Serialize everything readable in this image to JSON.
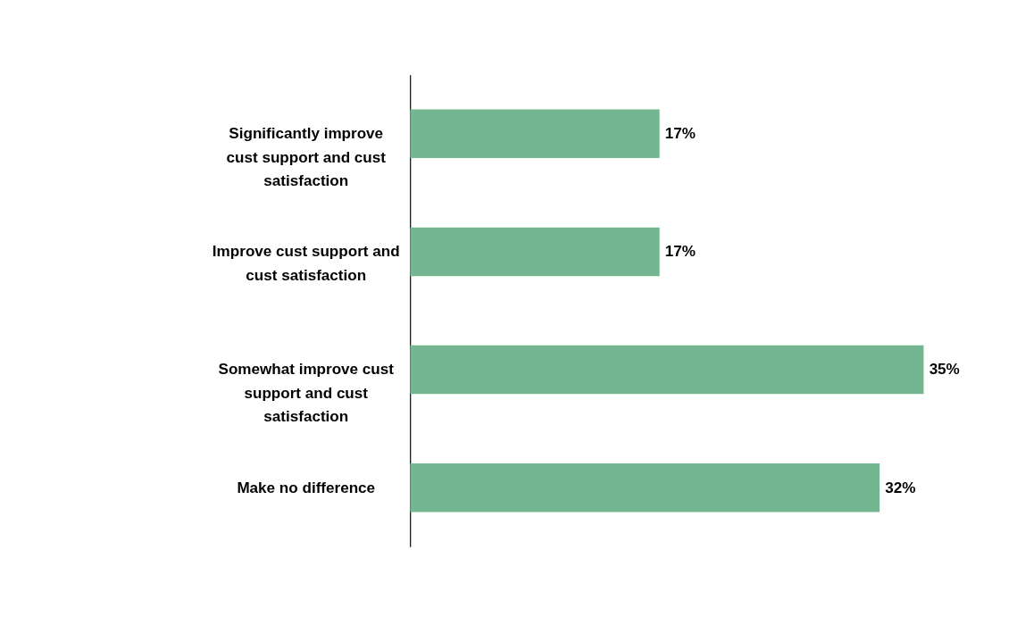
{
  "chart_data": {
    "type": "bar",
    "orientation": "horizontal",
    "categories": [
      "Significantly improve cust support and cust satisfaction",
      "Improve cust support and cust satisfaction",
      "Somewhat improve cust support and cust satisfaction",
      "Make no difference"
    ],
    "values": [
      17,
      17,
      35,
      32
    ],
    "value_labels": [
      "17%",
      "17%",
      "35%",
      "32%"
    ],
    "color": "#73b691",
    "grid": false
  }
}
